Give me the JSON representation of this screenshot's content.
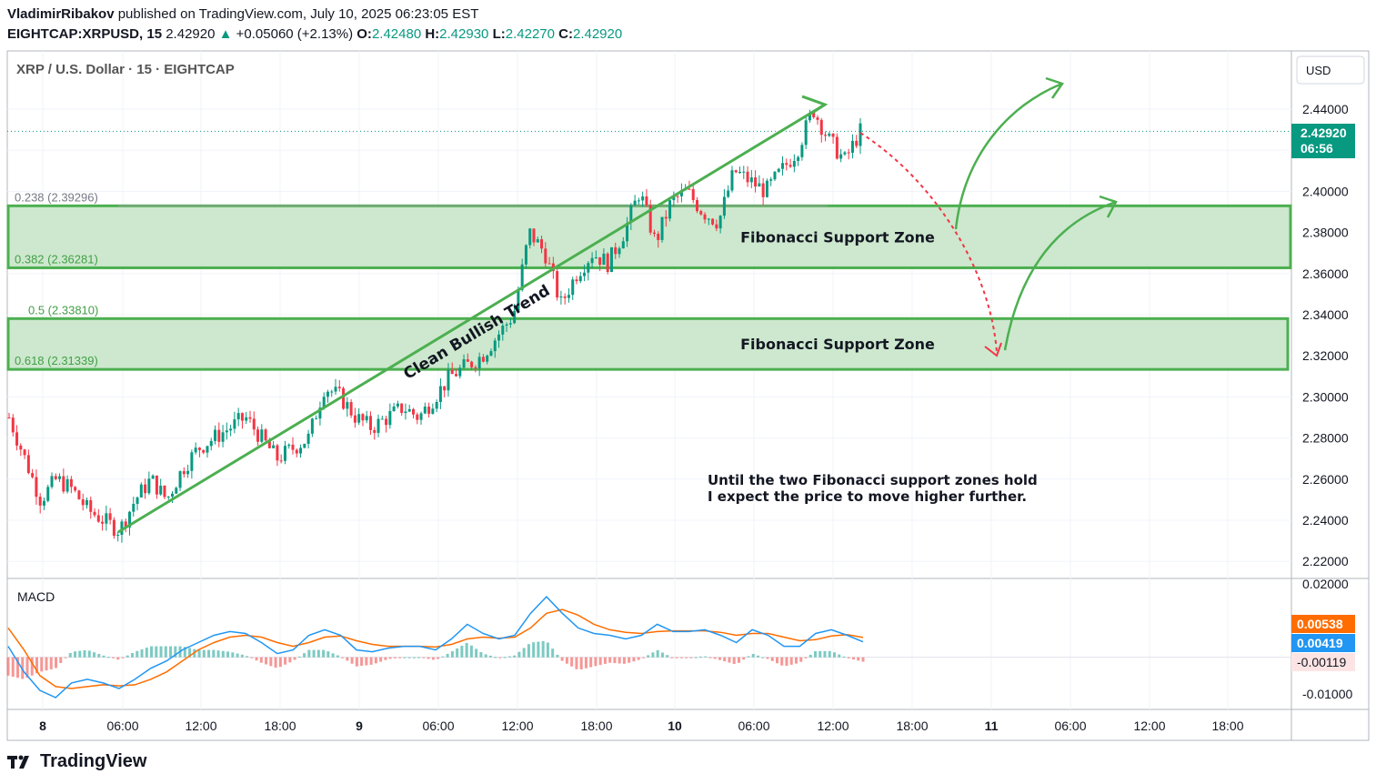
{
  "header": {
    "author": "VladimirRibakov",
    "published_text": "published on TradingView.com, July 10, 2025 06:23:05 EST",
    "symbol_interval": "EIGHTCAP:XRPUSD, 15",
    "last_price": "2.42920",
    "change_arrow": "▲",
    "change": "+0.05060 (+2.13%)",
    "open_label": "O:",
    "open": "2.42480",
    "high_label": "H:",
    "high": "2.42930",
    "low_label": "L:",
    "low": "2.42270",
    "close_label": "C:",
    "close": "2.42920"
  },
  "footer": {
    "brand": "TradingView"
  },
  "colors": {
    "up": "#089981",
    "down": "#f23645",
    "zone_fill": "#c8e6c9",
    "zone_border": "#4caf50",
    "macd": "#2196f3",
    "signal": "#ff6d00",
    "arrow": "#4caf50",
    "dash_arrow": "#f23645"
  },
  "chart_data": [
    {
      "type": "candlestick",
      "title": "XRP / U.S. Dollar · 15 · EIGHTCAP",
      "currency": "USD",
      "ylim": [
        2.21,
        2.46
      ],
      "y_ticks": [
        "2.44000",
        "2.42000",
        "2.40000",
        "2.38000",
        "2.36000",
        "2.34000",
        "2.32000",
        "2.30000",
        "2.28000",
        "2.26000",
        "2.24000",
        "2.22000"
      ],
      "x_ticks": [
        "8",
        "06:00",
        "12:00",
        "18:00",
        "9",
        "06:00",
        "12:00",
        "18:00",
        "10",
        "06:00",
        "12:00",
        "18:00",
        "11",
        "06:00",
        "12:00",
        "18:00"
      ],
      "price_label": "2.42920",
      "countdown": "06:56",
      "close_path": [
        2.29,
        2.27,
        2.25,
        2.26,
        2.255,
        2.245,
        2.24,
        2.235,
        2.25,
        2.26,
        2.25,
        2.265,
        2.275,
        2.28,
        2.285,
        2.29,
        2.28,
        2.27,
        2.275,
        2.28,
        2.305,
        2.3,
        2.29,
        2.285,
        2.29,
        2.295,
        2.29,
        2.3,
        2.31,
        2.315,
        2.32,
        2.33,
        2.34,
        2.38,
        2.37,
        2.345,
        2.36,
        2.37,
        2.365,
        2.38,
        2.4,
        2.375,
        2.395,
        2.4,
        2.39,
        2.385,
        2.41,
        2.405,
        2.4,
        2.41,
        2.42,
        2.44,
        2.425,
        2.415,
        2.4292
      ],
      "fib_levels": [
        {
          "label": "0.238 (2.39296)",
          "value": 2.39296
        },
        {
          "label": "0.382 (2.36281)",
          "value": 2.36281
        },
        {
          "label": "0.5 (2.33810)",
          "value": 2.3381
        },
        {
          "label": "0.618 (2.31339)",
          "value": 2.31339
        }
      ],
      "zones": [
        {
          "label": "Fibonacci Support Zone",
          "top": 2.39296,
          "bottom": 2.36281
        },
        {
          "label": "Fibonacci Support Zone",
          "top": 2.3381,
          "bottom": 2.31339
        }
      ],
      "trend_label": "Clean Bullish Trend",
      "annotation": [
        "Until the two Fibonacci support zones hold",
        "I expect the price to move higher further."
      ]
    },
    {
      "type": "line",
      "title": "MACD",
      "ylim": [
        -0.0125,
        0.0205
      ],
      "y_ticks": [
        "0.02000",
        "-0.01000"
      ],
      "series": [
        {
          "name": "MACD",
          "value_label": "0.00419"
        },
        {
          "name": "Signal",
          "value_label": "0.00538"
        },
        {
          "name": "Histogram",
          "value_label": "-0.00119"
        }
      ],
      "macd_path": [
        0.003,
        -0.004,
        -0.009,
        -0.011,
        -0.007,
        -0.006,
        -0.007,
        -0.0085,
        -0.006,
        -0.003,
        -0.001,
        0.002,
        0.004,
        0.006,
        0.007,
        0.0065,
        0.004,
        0.001,
        0.002,
        0.006,
        0.0075,
        0.006,
        0.002,
        0.0015,
        0.0025,
        0.003,
        0.003,
        0.002,
        0.005,
        0.009,
        0.0065,
        0.005,
        0.006,
        0.012,
        0.0165,
        0.012,
        0.008,
        0.0065,
        0.006,
        0.005,
        0.006,
        0.009,
        0.007,
        0.007,
        0.0075,
        0.006,
        0.004,
        0.0075,
        0.006,
        0.003,
        0.003,
        0.0065,
        0.0075,
        0.006,
        0.0042
      ],
      "signal_path": [
        0.008,
        0.002,
        -0.005,
        -0.008,
        -0.0085,
        -0.008,
        -0.0075,
        -0.0078,
        -0.0075,
        -0.006,
        -0.004,
        -0.001,
        0.002,
        0.004,
        0.0055,
        0.006,
        0.0055,
        0.004,
        0.003,
        0.004,
        0.0055,
        0.0058,
        0.0045,
        0.0035,
        0.003,
        0.003,
        0.003,
        0.0028,
        0.0035,
        0.005,
        0.0055,
        0.0052,
        0.0055,
        0.008,
        0.012,
        0.013,
        0.0115,
        0.009,
        0.0075,
        0.0068,
        0.0065,
        0.007,
        0.0072,
        0.0072,
        0.0072,
        0.0068,
        0.006,
        0.0065,
        0.0065,
        0.0055,
        0.0045,
        0.0048,
        0.0058,
        0.0062,
        0.0054
      ]
    }
  ]
}
